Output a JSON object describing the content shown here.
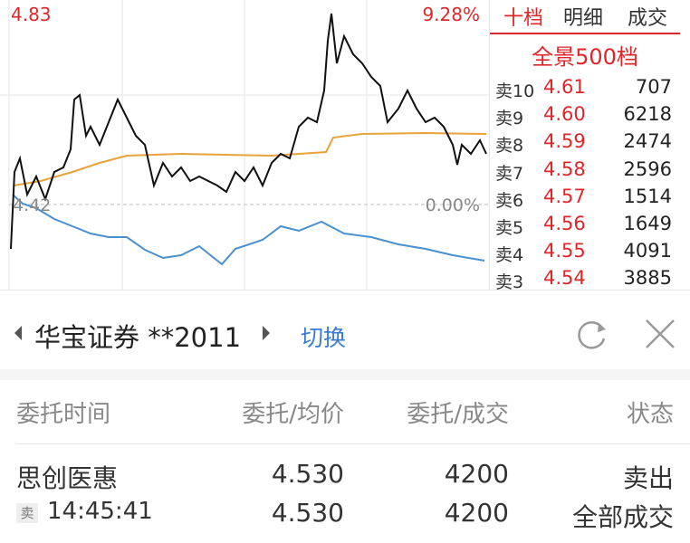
{
  "chart": {
    "high_price": "4.83",
    "high_pct": "9.28%",
    "base_price": "4.42",
    "base_pct": "0.00%"
  },
  "tabs": [
    "十档",
    "明细",
    "成交"
  ],
  "depth_title": "全景500档",
  "asks": [
    {
      "label": "卖10",
      "price": "4.61",
      "volume": "707"
    },
    {
      "label": "卖9",
      "price": "4.60",
      "volume": "6218"
    },
    {
      "label": "卖8",
      "price": "4.59",
      "volume": "2474"
    },
    {
      "label": "卖7",
      "price": "4.58",
      "volume": "2596"
    },
    {
      "label": "卖6",
      "price": "4.57",
      "volume": "1514"
    },
    {
      "label": "卖5",
      "price": "4.56",
      "volume": "1649"
    },
    {
      "label": "卖4",
      "price": "4.55",
      "volume": "4091"
    },
    {
      "label": "卖3",
      "price": "4.54",
      "volume": "3885"
    }
  ],
  "account": {
    "broker": "华宝证券 **2011",
    "switch": "切换"
  },
  "table": {
    "headers": [
      "委托时间",
      "委托/均价",
      "委托/成交",
      "状态"
    ],
    "rows": [
      [
        "思创医惠",
        "4.530",
        "4200",
        "卖出"
      ],
      [
        "14:45:41",
        "4.530",
        "4200",
        "全部成交"
      ]
    ],
    "badge": "卖"
  }
}
